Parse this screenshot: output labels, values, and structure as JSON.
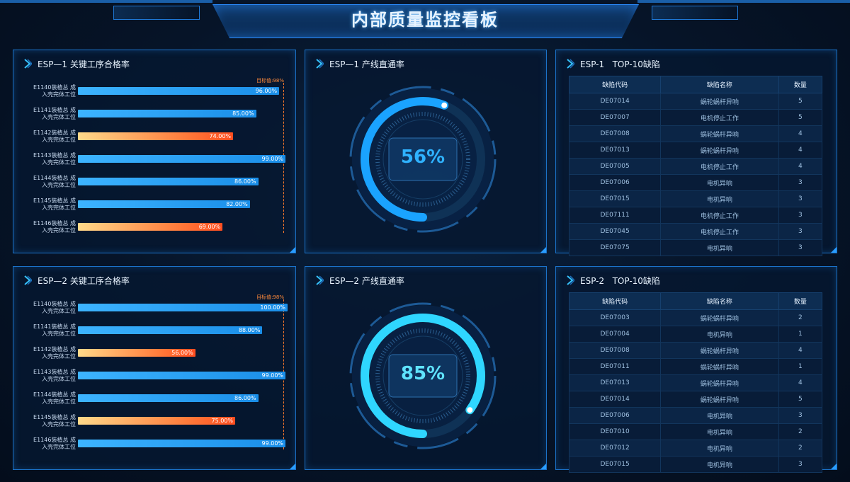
{
  "header": {
    "title": "内部质量监控看板"
  },
  "colors": {
    "accent": "#1b72c9",
    "bar_pass": "#1a8ee8",
    "bar_fail": "#ff5a25",
    "target": "#ff7a2a",
    "gauge1": "#1aa3ff",
    "gauge2": "#2fd6ff"
  },
  "panels": {
    "esp1_pass_rate": {
      "title": "ESP—1 关键工序合格率",
      "target_label": "目标值:98%",
      "rows": [
        {
          "label1": "E1140装植总 成",
          "label2": "入壳完体工位",
          "value": 96,
          "value_label": "96.00%"
        },
        {
          "label1": "E1141装植总 成",
          "label2": "入壳完体工位",
          "value": 85,
          "value_label": "85.00%"
        },
        {
          "label1": "E1142装植总 成",
          "label2": "入壳完体工位",
          "value": 74,
          "value_label": "74.00%"
        },
        {
          "label1": "E1143装植总 成",
          "label2": "入壳完体工位",
          "value": 99,
          "value_label": "99.00%"
        },
        {
          "label1": "E1144装植总 成",
          "label2": "入壳完体工位",
          "value": 86,
          "value_label": "86.00%"
        },
        {
          "label1": "E1145装植总 成",
          "label2": "入壳完体工位",
          "value": 82,
          "value_label": "82.00%"
        },
        {
          "label1": "E1146装植总 成",
          "label2": "入壳完体工位",
          "value": 69,
          "value_label": "69.00%"
        }
      ]
    },
    "esp1_yield": {
      "title": "ESP—1 产线直通率",
      "value": 56,
      "value_label": "56%"
    },
    "esp1_top10": {
      "title": "ESP-1   TOP-10缺陷",
      "columns": [
        "缺陷代码",
        "缺陷名称",
        "数量"
      ],
      "rows": [
        [
          "DE07014",
          "蜗轮蜗杆异响",
          "5"
        ],
        [
          "DE07007",
          "电机停止工作",
          "5"
        ],
        [
          "DE07008",
          "蜗轮蜗杆异响",
          "4"
        ],
        [
          "DE07013",
          "蜗轮蜗杆异响",
          "4"
        ],
        [
          "DE07005",
          "电机停止工作",
          "4"
        ],
        [
          "DE07006",
          "电机异响",
          "3"
        ],
        [
          "DE07015",
          "电机异响",
          "3"
        ],
        [
          "DE07111",
          "电机停止工作",
          "3"
        ],
        [
          "DE07045",
          "电机停止工作",
          "3"
        ],
        [
          "DE07075",
          "电机异响",
          "3"
        ]
      ]
    },
    "esp2_pass_rate": {
      "title": "ESP—2 关键工序合格率",
      "target_label": "目标值:98%",
      "rows": [
        {
          "label1": "E1140装植总 成",
          "label2": "入壳完体工位",
          "value": 100,
          "value_label": "100.00%"
        },
        {
          "label1": "E1141装植总 成",
          "label2": "入壳完体工位",
          "value": 88,
          "value_label": "88.00%"
        },
        {
          "label1": "E1142装植总 成",
          "label2": "入壳完体工位",
          "value": 56,
          "value_label": "56.00%"
        },
        {
          "label1": "E1143装植总 成",
          "label2": "入壳完体工位",
          "value": 99,
          "value_label": "99.00%"
        },
        {
          "label1": "E1144装植总 成",
          "label2": "入壳完体工位",
          "value": 86,
          "value_label": "86.00%"
        },
        {
          "label1": "E1145装植总 成",
          "label2": "入壳完体工位",
          "value": 75,
          "value_label": "75.00%"
        },
        {
          "label1": "E1146装植总 成",
          "label2": "入壳完体工位",
          "value": 99,
          "value_label": "99.00%"
        }
      ]
    },
    "esp2_yield": {
      "title": "ESP—2 产线直通率",
      "value": 85,
      "value_label": "85%"
    },
    "esp2_top10": {
      "title": "ESP-2   TOP-10缺陷",
      "columns": [
        "缺陷代码",
        "缺陷名称",
        "数量"
      ],
      "rows": [
        [
          "DE07003",
          "蜗轮蜗杆异响",
          "2"
        ],
        [
          "DE07004",
          "电机异响",
          "1"
        ],
        [
          "DE07008",
          "蜗轮蜗杆异响",
          "4"
        ],
        [
          "DE07011",
          "蜗轮蜗杆异响",
          "1"
        ],
        [
          "DE07013",
          "蜗轮蜗杆异响",
          "4"
        ],
        [
          "DE07014",
          "蜗轮蜗杆异响",
          "5"
        ],
        [
          "DE07006",
          "电机异响",
          "3"
        ],
        [
          "DE07010",
          "电机异响",
          "2"
        ],
        [
          "DE07012",
          "电机异响",
          "2"
        ],
        [
          "DE07015",
          "电机异响",
          "3"
        ]
      ]
    }
  }
}
